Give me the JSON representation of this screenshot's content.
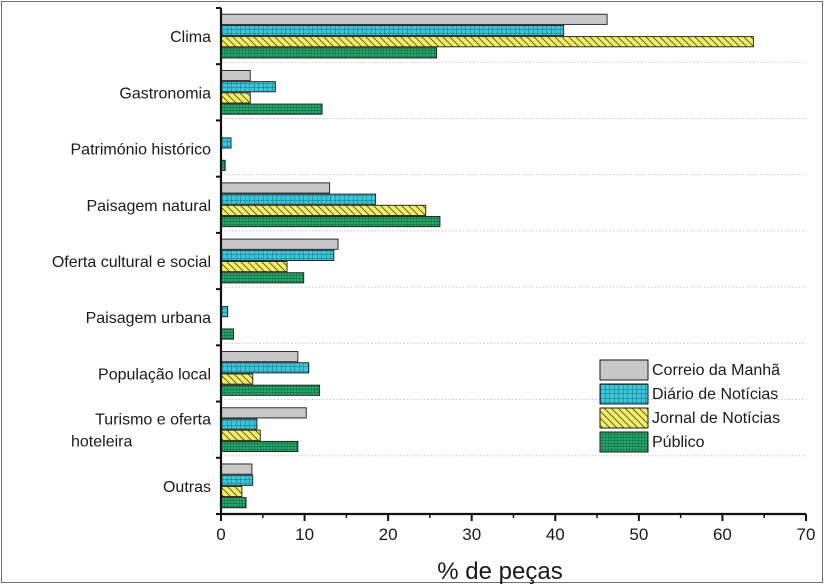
{
  "chart_data": {
    "type": "bar",
    "orientation": "horizontal",
    "title": "",
    "xlabel": "% de peças",
    "ylabel": "",
    "xlim": [
      0,
      70
    ],
    "xticks": [
      0,
      10,
      20,
      30,
      40,
      50,
      60,
      70
    ],
    "categories": [
      [
        "Clima"
      ],
      [
        "Gastronomia"
      ],
      [
        "Património histórico"
      ],
      [
        "Paisagem natural"
      ],
      [
        "Oferta cultural e social"
      ],
      [
        "Paisagem urbana"
      ],
      [
        "População local"
      ],
      [
        "Turismo e oferta",
        "hoteleira"
      ],
      [
        "Outras"
      ]
    ],
    "series": [
      {
        "name": "Correio da Manhã",
        "color": "#c8c8c8",
        "pattern": "solid",
        "values": [
          46.2,
          3.5,
          0,
          13.0,
          14.0,
          0,
          9.2,
          10.2,
          3.7
        ]
      },
      {
        "name": "Diário de Notícias",
        "color": "#3cc4d8",
        "pattern": "grid",
        "values": [
          41.0,
          6.5,
          1.2,
          18.5,
          13.5,
          0.8,
          10.5,
          4.3,
          3.8
        ]
      },
      {
        "name": "Jornal de Notícias",
        "color": "#f0ee6a",
        "pattern": "diagonal",
        "values": [
          63.7,
          3.5,
          0,
          24.5,
          7.9,
          0,
          3.8,
          4.7,
          2.5
        ]
      },
      {
        "name": "Público",
        "color": "#25a86a",
        "pattern": "grid-dense",
        "values": [
          25.8,
          12.1,
          0.5,
          26.2,
          9.9,
          1.5,
          11.8,
          9.2,
          3.0
        ]
      }
    ],
    "legend_position": "bottom-right",
    "grid": false
  }
}
